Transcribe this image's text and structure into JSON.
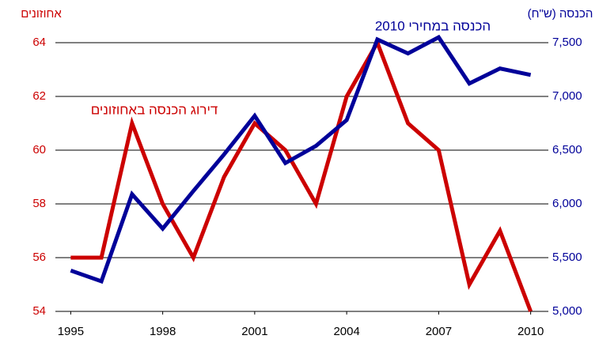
{
  "chart_data": {
    "type": "line",
    "x": [
      1995,
      1996,
      1997,
      1998,
      1999,
      2000,
      2001,
      2002,
      2003,
      2004,
      2005,
      2006,
      2007,
      2008,
      2009,
      2010
    ],
    "xlim": [
      1994.5,
      2010.5
    ],
    "xticks": [
      1995,
      1998,
      2001,
      2004,
      2007,
      2010
    ],
    "ylabel": "אחוזונים",
    "y2label": "הכנסה (ש\"ח)",
    "ylim": [
      54,
      64
    ],
    "yticks": [
      54,
      56,
      58,
      60,
      62,
      64
    ],
    "y2lim": [
      5000,
      7500
    ],
    "y2ticks": [
      {
        "value": 5000,
        "label": "5,000"
      },
      {
        "value": 5500,
        "label": "5,500"
      },
      {
        "value": 6000,
        "label": "6,000"
      },
      {
        "value": 6500,
        "label": "6,500"
      },
      {
        "value": 7000,
        "label": "7,000"
      },
      {
        "value": 7500,
        "label": "7,500"
      }
    ],
    "grid": true,
    "series": [
      {
        "name": "דירוג הכנסה באחוזונים",
        "color": "#cc0000",
        "values": [
          56,
          56,
          61,
          58,
          56,
          59,
          61,
          60,
          58,
          62,
          64,
          61,
          60,
          55,
          57,
          54
        ]
      },
      {
        "name": "הכנסה במחירי 2010",
        "color": "#000099",
        "axis": "y2",
        "values": [
          5380,
          5280,
          6090,
          5770,
          6120,
          6460,
          6820,
          6380,
          6540,
          6780,
          7530,
          7400,
          7550,
          7120,
          7260,
          7200
        ]
      }
    ]
  }
}
